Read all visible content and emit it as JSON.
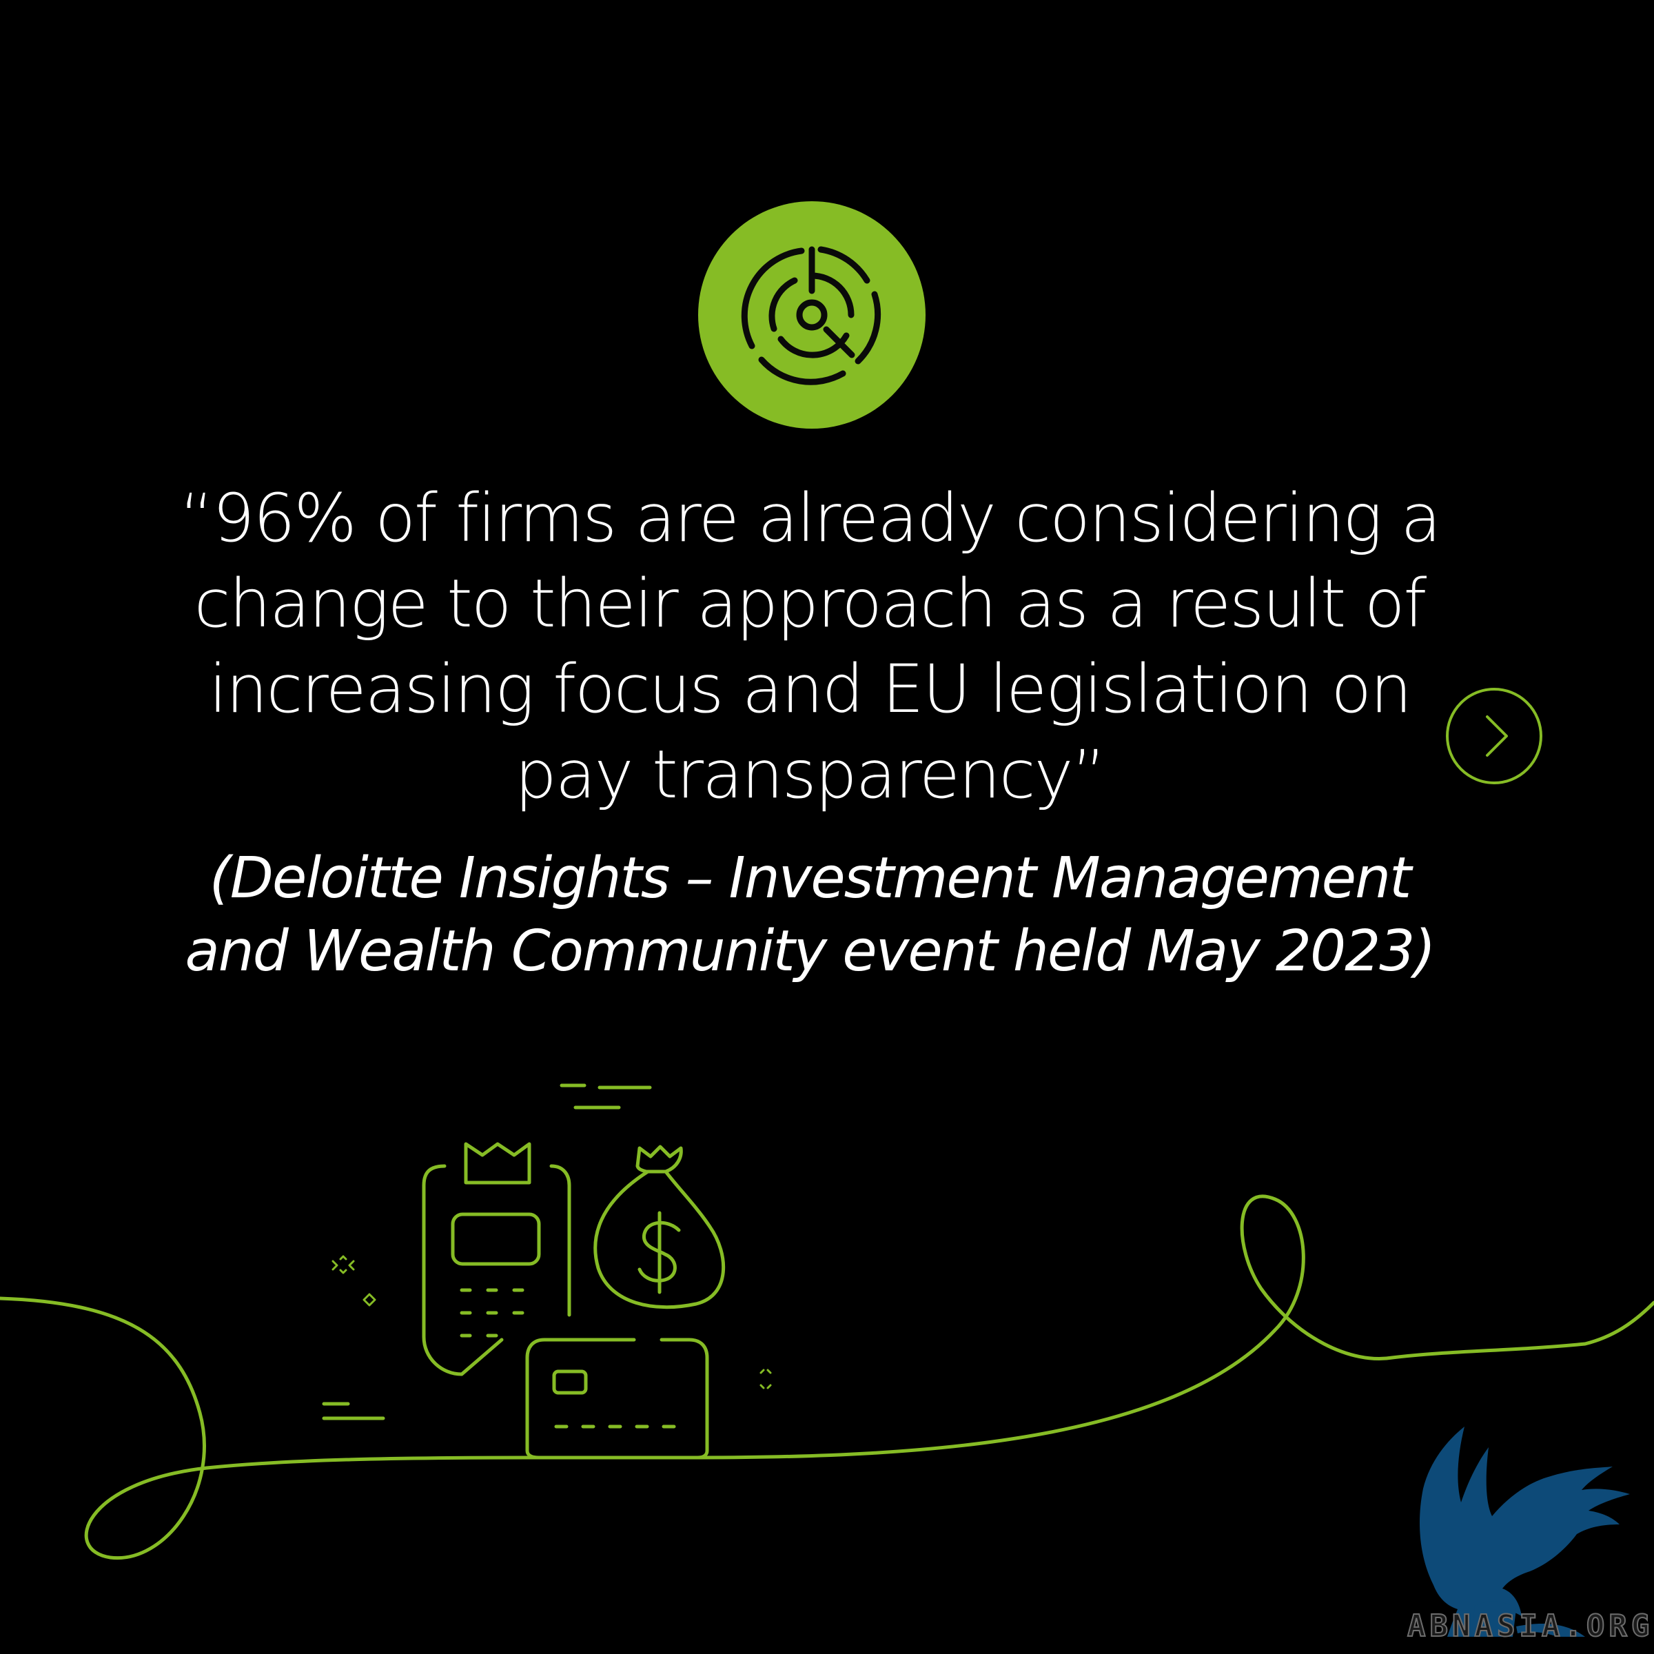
{
  "quote": {
    "lines": [
      "“96% of firms are already considering a",
      "change to their approach as a result of",
      "increasing focus and EU legislation on",
      "pay transparency”"
    ]
  },
  "citation": {
    "lines": [
      "(Deloitte Insights – Investment Management",
      "and Wealth Community event held May 2023)"
    ]
  },
  "icons": {
    "top_badge": "target-maze-icon",
    "next": "chevron-right-icon",
    "illustration": [
      "card-terminal-icon",
      "money-bag-icon",
      "credit-card-icon",
      "dollar-sign-icon"
    ]
  },
  "watermark": {
    "text": "ABNASIA.ORG",
    "emblem": "griffin-emblem"
  },
  "colors": {
    "background": "#000000",
    "accent": "#86bc25",
    "text": "#ffffff",
    "watermark": "#0d4a78"
  }
}
